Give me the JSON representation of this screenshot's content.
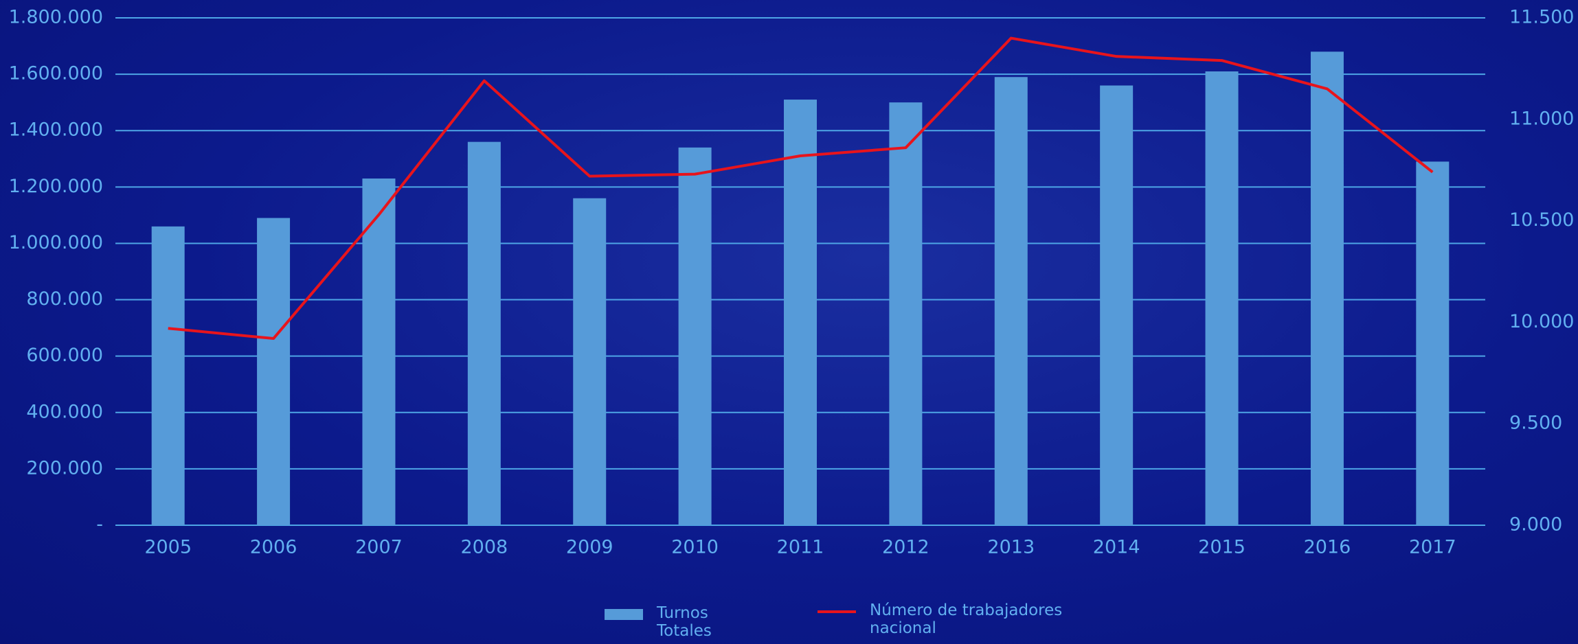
{
  "chart_data": {
    "type": "bar-line",
    "categories": [
      "2005",
      "2006",
      "2007",
      "2008",
      "2009",
      "2010",
      "2011",
      "2012",
      "2013",
      "2014",
      "2015",
      "2016",
      "2017"
    ],
    "series": [
      {
        "name": "Turnos Totales",
        "type": "bar",
        "color": "#569bd9",
        "values": [
          1060000,
          1090000,
          1230000,
          1360000,
          1160000,
          1340000,
          1510000,
          1500000,
          1590000,
          1560000,
          1610000,
          1680000,
          1290000
        ]
      },
      {
        "name": "Número de trabajadores nacional",
        "type": "line",
        "axis": "y2",
        "color": "#e8141c",
        "values": [
          9970,
          9920,
          10530,
          11190,
          10720,
          10730,
          10820,
          10860,
          11400,
          11310,
          11290,
          11150,
          10740
        ]
      }
    ],
    "ylim": [
      0,
      1800000
    ],
    "yticks": [
      {
        "value": 0,
        "label": "-"
      },
      {
        "value": 200000,
        "label": "200.000"
      },
      {
        "value": 400000,
        "label": "400.000"
      },
      {
        "value": 600000,
        "label": "600.000"
      },
      {
        "value": 800000,
        "label": "800.000"
      },
      {
        "value": 1000000,
        "label": "1.000.000"
      },
      {
        "value": 1200000,
        "label": "1.200.000"
      },
      {
        "value": 1400000,
        "label": "1.400.000"
      },
      {
        "value": 1600000,
        "label": "1.600.000"
      },
      {
        "value": 1800000,
        "label": "1.800.000"
      }
    ],
    "y2lim": [
      9000,
      11500
    ],
    "y2ticks": [
      {
        "value": 9000,
        "label": "9.000"
      },
      {
        "value": 9500,
        "label": "9.500"
      },
      {
        "value": 10000,
        "label": "10.000"
      },
      {
        "value": 10500,
        "label": "10.500"
      },
      {
        "value": 11000,
        "label": "11.000"
      },
      {
        "value": 11500,
        "label": "11.500"
      }
    ],
    "grid": true,
    "legend": "bottom"
  }
}
